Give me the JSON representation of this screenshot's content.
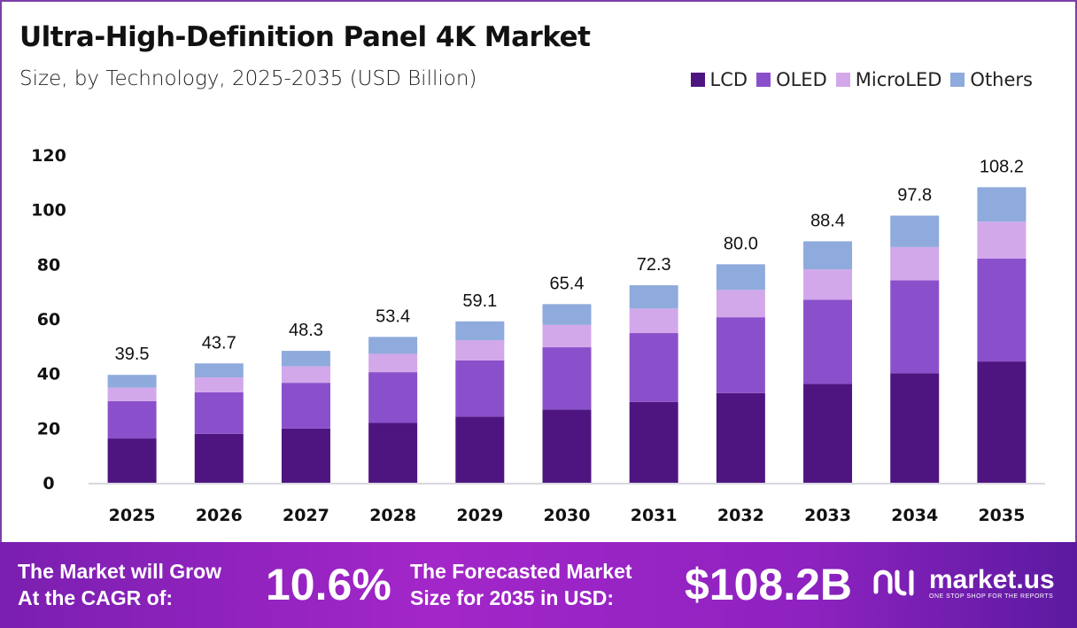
{
  "chart_data": {
    "type": "bar",
    "stacked": true,
    "title": "Ultra-High-Definition  Panel 4K Market",
    "subtitle": "Size, by Technology, 2025-2035 (USD Billion)",
    "xlabel": "",
    "ylabel": "",
    "ylim": [
      0,
      120
    ],
    "yticks": [
      0,
      20,
      40,
      60,
      80,
      100,
      120
    ],
    "grid": false,
    "legend_position": "top-right",
    "categories": [
      "2025",
      "2026",
      "2027",
      "2028",
      "2029",
      "2030",
      "2031",
      "2032",
      "2033",
      "2034",
      "2035"
    ],
    "totals": [
      "39.5",
      "43.7",
      "48.3",
      "53.4",
      "59.1",
      "65.4",
      "72.3",
      "80.0",
      "88.4",
      "97.8",
      "108.2"
    ],
    "series": [
      {
        "name": "LCD",
        "color": "#4e1580",
        "values": [
          16.2,
          17.9,
          19.8,
          21.9,
          24.2,
          26.8,
          29.6,
          32.8,
          36.2,
          40.1,
          44.4
        ]
      },
      {
        "name": "OLED",
        "color": "#8a50cb",
        "values": [
          13.7,
          15.2,
          16.8,
          18.6,
          20.6,
          22.8,
          25.2,
          27.8,
          30.8,
          34.0,
          37.7
        ]
      },
      {
        "name": "MicroLED",
        "color": "#d2a8ea",
        "values": [
          4.9,
          5.5,
          6.0,
          6.7,
          7.4,
          8.2,
          9.0,
          10.0,
          11.1,
          12.2,
          13.5
        ]
      },
      {
        "name": "Others",
        "color": "#8faadc",
        "values": [
          4.7,
          5.1,
          5.7,
          6.2,
          6.9,
          7.6,
          8.5,
          9.4,
          10.3,
          11.5,
          12.6
        ]
      }
    ]
  },
  "footer": {
    "cagr_line1": "The Market will Grow",
    "cagr_line2": "At the CAGR of:",
    "cagr_value": "10.6%",
    "forecast_line1": "The Forecasted Market",
    "forecast_line2": "Size for 2035 in USD:",
    "forecast_value": "$108.2B",
    "brand": "market.us",
    "tagline": "ONE STOP SHOP FOR THE REPORTS"
  }
}
